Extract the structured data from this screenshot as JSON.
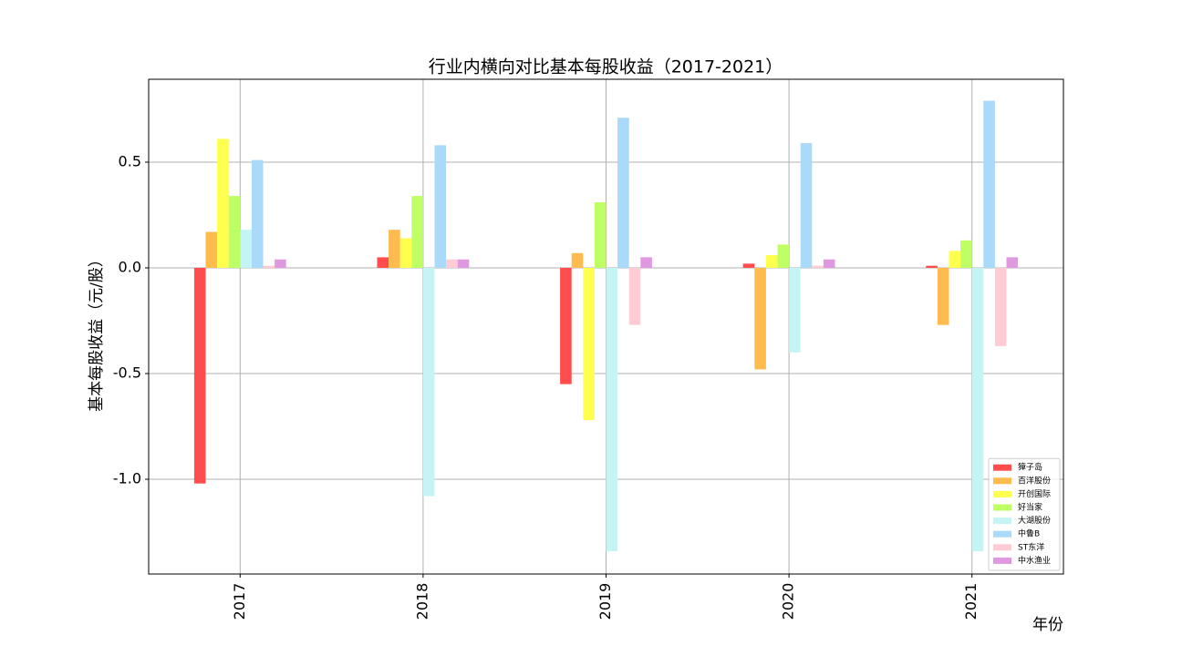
{
  "chart_data": {
    "type": "bar",
    "title": "行业内横向对比基本每股收益（2017-2021）",
    "x_label": "年份",
    "y_label": "基本每股收益（元/股）",
    "categories": [
      "2017",
      "2018",
      "2019",
      "2020",
      "2021"
    ],
    "series": [
      {
        "name": "獐子岛",
        "color": "#ff4d4d",
        "values": [
          -1.02,
          0.05,
          -0.55,
          0.02,
          0.01
        ]
      },
      {
        "name": "百洋股份",
        "color": "#ffbb4d",
        "values": [
          0.17,
          0.18,
          0.07,
          -0.48,
          -0.27
        ]
      },
      {
        "name": "开创国际",
        "color": "#ffff4d",
        "values": [
          0.61,
          0.14,
          -0.72,
          0.06,
          0.08
        ]
      },
      {
        "name": "好当家",
        "color": "#bfff66",
        "values": [
          0.34,
          0.34,
          0.31,
          0.11,
          0.13
        ]
      },
      {
        "name": "大湖股份",
        "color": "#c5f4f4",
        "values": [
          0.18,
          -1.08,
          -1.34,
          -0.4,
          -1.34
        ]
      },
      {
        "name": "中鲁B",
        "color": "#a9daf9",
        "values": [
          0.51,
          0.58,
          0.71,
          0.59,
          0.79
        ]
      },
      {
        "name": "ST东洋",
        "color": "#ffccd5",
        "values": [
          0.01,
          0.04,
          -0.27,
          0.01,
          -0.37
        ]
      },
      {
        "name": "中水渔业",
        "color": "#e099e0",
        "values": [
          0.04,
          0.04,
          0.05,
          0.04,
          0.05
        ]
      }
    ],
    "ylim": [
      -1.448,
      0.892
    ],
    "yticks": [
      {
        "value": -1.0,
        "label": "-1.0"
      },
      {
        "value": -0.5,
        "label": "-0.5"
      },
      {
        "value": 0,
        "label": "0.0"
      },
      {
        "value": 0.5,
        "label": "0.5"
      }
    ],
    "grid": true,
    "legend": "lower right"
  }
}
